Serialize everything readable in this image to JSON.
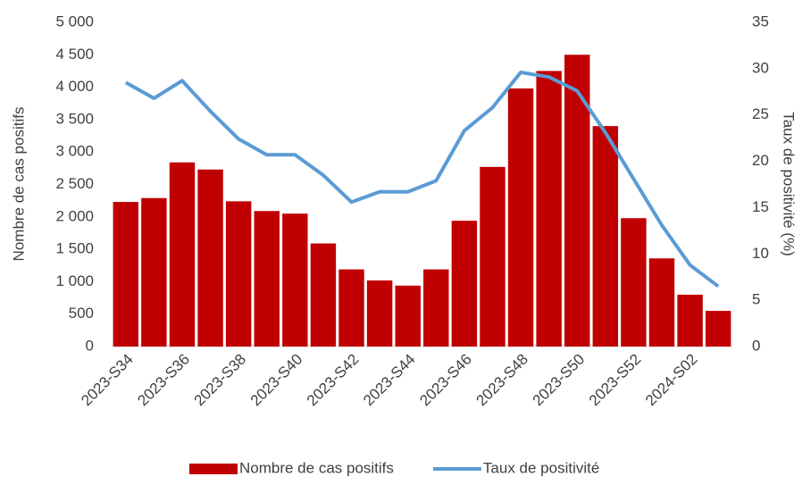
{
  "chart_data": {
    "type": "bar",
    "categories": [
      "2023-S34",
      null,
      "2023-S36",
      null,
      "2023-S38",
      null,
      "2023-S40",
      null,
      "2023-S42",
      null,
      "2023-S44",
      null,
      "2023-S46",
      null,
      "2023-S48",
      null,
      "2023-S50",
      null,
      "2023-S52",
      null,
      "2024-S02",
      null
    ],
    "series": [
      {
        "name": "Nombre de cas positifs",
        "type": "bar",
        "color": "#c00000",
        "values": [
          2230,
          2290,
          2840,
          2730,
          2240,
          2090,
          2050,
          1590,
          1190,
          1020,
          940,
          1190,
          1940,
          2770,
          3980,
          4250,
          4500,
          3400,
          1980,
          1360,
          800,
          550
        ]
      },
      {
        "name": "Taux de positivité",
        "type": "line",
        "axis": "y2",
        "color": "#5b9bd5",
        "values": [
          28.5,
          26.8,
          28.7,
          25.4,
          22.4,
          20.7,
          20.7,
          18.5,
          15.6,
          16.7,
          16.7,
          17.9,
          23.3,
          25.8,
          29.6,
          29.1,
          27.6,
          23.1,
          18.1,
          13.1,
          8.8,
          6.5
        ]
      }
    ],
    "y_label": "Nombre de cas positifs",
    "y2_label": "Taux de positivité (%)",
    "ylim": [
      0,
      5000
    ],
    "yticks": [
      0,
      500,
      {
        "value": 1000,
        "label": "1 000"
      },
      {
        "value": 1500,
        "label": "1 500"
      },
      {
        "value": 2000,
        "label": "2 000"
      },
      {
        "value": 2500,
        "label": "2 500"
      },
      {
        "value": 3000,
        "label": "3 000"
      },
      {
        "value": 3500,
        "label": "3 500"
      },
      {
        "value": 4000,
        "label": "4 000"
      },
      {
        "value": 4500,
        "label": "4 500"
      },
      {
        "value": 5000,
        "label": "5 000"
      }
    ],
    "y2lim": [
      0,
      35
    ],
    "y2ticks": [
      0,
      5,
      10,
      15,
      20,
      25,
      30,
      35
    ],
    "legend": "bottom"
  }
}
